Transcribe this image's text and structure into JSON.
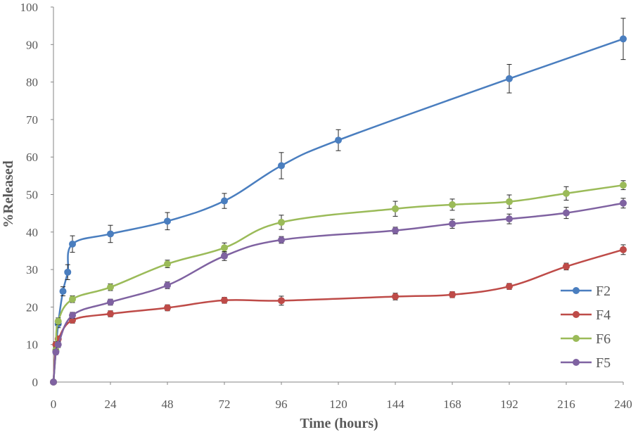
{
  "chart_data": {
    "type": "line",
    "title": "",
    "xlabel": "Time (hours)",
    "ylabel": "%Released",
    "xlim": [
      0,
      240
    ],
    "ylim": [
      0,
      100
    ],
    "xticks": [
      0,
      24,
      48,
      72,
      96,
      120,
      144,
      168,
      192,
      216,
      240
    ],
    "yticks": [
      0,
      10,
      20,
      30,
      40,
      50,
      60,
      70,
      80,
      90,
      100
    ],
    "grid": false,
    "legend": "right",
    "series": [
      {
        "name": "F2",
        "color": "#4a7ebf",
        "x": [
          0,
          1,
          2,
          4,
          6,
          8,
          24,
          48,
          72,
          96,
          120,
          192,
          240
        ],
        "y": [
          0,
          8.2,
          15.5,
          24.2,
          29.3,
          36.8,
          39.5,
          42.9,
          48.3,
          57.7,
          64.5,
          80.9,
          91.5
        ],
        "err": [
          0,
          0.8,
          1.0,
          1.2,
          2.0,
          2.2,
          2.3,
          2.3,
          2.0,
          3.5,
          2.8,
          3.8,
          5.5
        ]
      },
      {
        "name": "F4",
        "color": "#be4b48",
        "x": [
          0,
          1,
          2,
          8,
          24,
          48,
          72,
          96,
          144,
          168,
          192,
          216,
          240
        ],
        "y": [
          0,
          10.0,
          11.5,
          16.5,
          18.2,
          19.8,
          21.8,
          21.7,
          22.8,
          23.3,
          25.5,
          30.8,
          35.3
        ],
        "err": [
          0,
          0.8,
          0.8,
          0.8,
          0.8,
          0.8,
          0.8,
          1.2,
          0.9,
          0.8,
          0.8,
          0.9,
          1.3
        ]
      },
      {
        "name": "F6",
        "color": "#9bbb59",
        "x": [
          0,
          1,
          2,
          8,
          24,
          48,
          72,
          96,
          144,
          168,
          192,
          216,
          240
        ],
        "y": [
          0,
          8.5,
          16.2,
          22.1,
          25.3,
          31.5,
          35.8,
          42.6,
          46.2,
          47.3,
          48.1,
          50.3,
          52.5
        ],
        "err": [
          0,
          0.8,
          0.9,
          0.9,
          0.9,
          1.0,
          1.3,
          1.9,
          2.0,
          1.5,
          1.8,
          1.8,
          1.2
        ]
      },
      {
        "name": "F5",
        "color": "#7f62a1",
        "x": [
          0,
          1,
          2,
          8,
          24,
          48,
          72,
          96,
          144,
          168,
          192,
          216,
          240
        ],
        "y": [
          0,
          8.0,
          10.0,
          17.8,
          21.3,
          25.8,
          33.6,
          37.9,
          40.4,
          42.2,
          43.5,
          45.1,
          47.7
        ],
        "err": [
          0,
          0.7,
          0.8,
          0.8,
          0.8,
          0.9,
          1.2,
          0.9,
          0.9,
          1.2,
          1.3,
          1.5,
          1.3
        ]
      }
    ]
  }
}
